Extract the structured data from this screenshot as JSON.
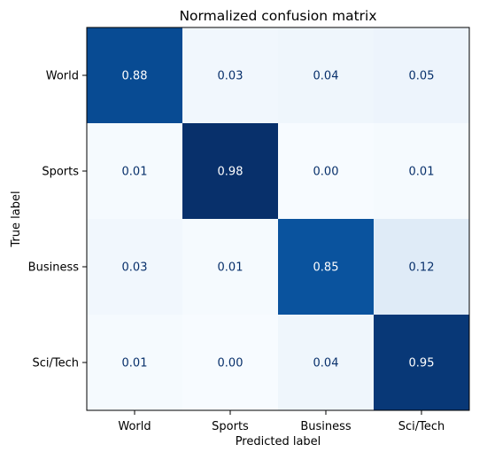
{
  "chart_data": {
    "type": "heatmap",
    "title": "Normalized confusion matrix",
    "xlabel": "Predicted label",
    "ylabel": "True label",
    "x_categories": [
      "World",
      "Sports",
      "Business",
      "Sci/Tech"
    ],
    "y_categories": [
      "World",
      "Sports",
      "Business",
      "Sci/Tech"
    ],
    "values": [
      [
        0.88,
        0.03,
        0.04,
        0.05
      ],
      [
        0.01,
        0.98,
        0.0,
        0.01
      ],
      [
        0.03,
        0.01,
        0.85,
        0.12
      ],
      [
        0.01,
        0.0,
        0.04,
        0.95
      ]
    ],
    "value_format": "0.00",
    "colormap": "Blues",
    "colormap_stops": [
      "#f7fbff",
      "#deebf7",
      "#c6dbef",
      "#9ecae1",
      "#6baed6",
      "#4292c6",
      "#2171b5",
      "#08519c",
      "#08306b"
    ],
    "text_color_light": "#ffffff",
    "text_color_dark": "#08306b",
    "colorbar": false,
    "grid": false
  }
}
